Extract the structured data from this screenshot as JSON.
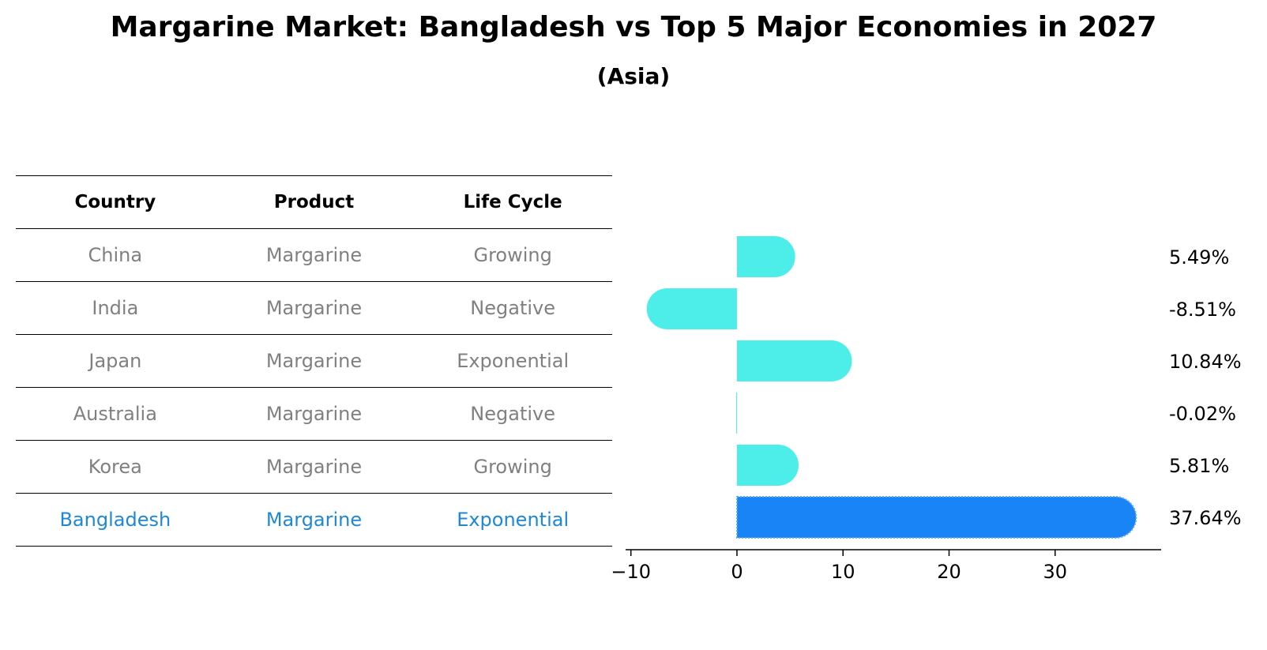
{
  "title": "Margarine Market: Bangladesh vs Top 5 Major Economies in 2027",
  "subtitle": "(Asia)",
  "table": {
    "headers": [
      "Country",
      "Product",
      "Life Cycle"
    ],
    "rows": [
      {
        "country": "China",
        "product": "Margarine",
        "life_cycle": "Growing"
      },
      {
        "country": "India",
        "product": "Margarine",
        "life_cycle": "Negative"
      },
      {
        "country": "Japan",
        "product": "Margarine",
        "life_cycle": "Exponential"
      },
      {
        "country": "Australia",
        "product": "Margarine",
        "life_cycle": "Negative"
      },
      {
        "country": "Korea",
        "product": "Margarine",
        "life_cycle": "Growing"
      },
      {
        "country": "Bangladesh",
        "product": "Margarine",
        "life_cycle": "Exponential"
      }
    ],
    "highlight_row": "Bangladesh",
    "highlight_color": "#1e88d8",
    "text_color": "#808080"
  },
  "chart_data": {
    "type": "bar",
    "orientation": "horizontal",
    "categories": [
      "China",
      "India",
      "Japan",
      "Australia",
      "Korea",
      "Bangladesh"
    ],
    "values": [
      5.49,
      -8.51,
      10.84,
      -0.02,
      5.81,
      37.64
    ],
    "value_labels": [
      "5.49%",
      "-8.51%",
      "10.84%",
      "-0.02%",
      "5.81%",
      "37.64%"
    ],
    "xlim": [
      -10.5,
      40
    ],
    "xticks": [
      -10,
      0,
      10,
      20,
      30
    ],
    "xtick_labels": [
      "−10",
      "0",
      "10",
      "20",
      "30"
    ],
    "bar_color": "#4deeea",
    "highlight_color": "#1984f5",
    "highlight_category": "Bangladesh",
    "grid": false
  }
}
